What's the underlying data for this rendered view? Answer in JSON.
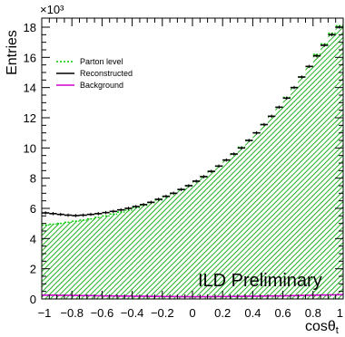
{
  "chart_data": {
    "type": "histogram",
    "ylabel": "Entries",
    "y_exponent": "×10³",
    "xlabel": "cosθ",
    "xlabel_subscript": "t",
    "watermark": "ILD Preliminary",
    "xlim": [
      -1,
      1
    ],
    "ylim": [
      0,
      18.6
    ],
    "xticks": [
      "−1",
      "−0.8",
      "−0.6",
      "−0.4",
      "−0.2",
      "0",
      "0.2",
      "0.4",
      "0.6",
      "0.8",
      "1"
    ],
    "yticks": [
      "0",
      "2",
      "4",
      "6",
      "8",
      "10",
      "12",
      "14",
      "16",
      "18"
    ],
    "legend": {
      "placement": "top-left",
      "entries": [
        {
          "label": "Parton level",
          "color": "#00cc00",
          "style": "dotted"
        },
        {
          "label": "Reconstructed",
          "color": "#000000",
          "style": "solid"
        },
        {
          "label": "Background",
          "color": "#cc00cc",
          "style": "solid"
        }
      ]
    },
    "bin_edges_start": -1,
    "bin_width": 0.05,
    "series": [
      {
        "name": "Parton level",
        "color": "#00cc00",
        "values": [
          4.9,
          4.95,
          5.0,
          5.08,
          5.15,
          5.22,
          5.3,
          5.4,
          5.5,
          5.62,
          5.75,
          5.88,
          6.05,
          6.2,
          6.38,
          6.55,
          6.78,
          7.0,
          7.25,
          7.5,
          7.8,
          8.1,
          8.45,
          8.8,
          9.2,
          9.6,
          10.05,
          10.5,
          11.0,
          11.55,
          12.1,
          12.7,
          13.35,
          14.0,
          14.7,
          15.4,
          16.2,
          16.9,
          17.6,
          18.1
        ]
      },
      {
        "name": "Reconstructed",
        "color": "#000000",
        "values": [
          5.7,
          5.65,
          5.6,
          5.55,
          5.52,
          5.55,
          5.6,
          5.65,
          5.72,
          5.8,
          5.9,
          6.0,
          6.12,
          6.25,
          6.4,
          6.6,
          6.8,
          7.0,
          7.25,
          7.5,
          7.8,
          8.1,
          8.45,
          8.8,
          9.2,
          9.6,
          10.0,
          10.5,
          11.0,
          11.55,
          12.1,
          12.7,
          13.3,
          14.0,
          14.7,
          15.4,
          16.1,
          16.8,
          17.5,
          18.0
        ]
      },
      {
        "name": "Background",
        "color": "#cc00cc",
        "values": [
          0.25,
          0.25,
          0.24,
          0.24,
          0.23,
          0.22,
          0.22,
          0.21,
          0.2,
          0.2,
          0.19,
          0.19,
          0.18,
          0.18,
          0.17,
          0.17,
          0.16,
          0.16,
          0.15,
          0.15,
          0.15,
          0.15,
          0.15,
          0.16,
          0.16,
          0.17,
          0.17,
          0.18,
          0.18,
          0.19,
          0.2,
          0.2,
          0.21,
          0.22,
          0.23,
          0.24,
          0.25,
          0.26,
          0.27,
          0.28
        ]
      }
    ]
  }
}
